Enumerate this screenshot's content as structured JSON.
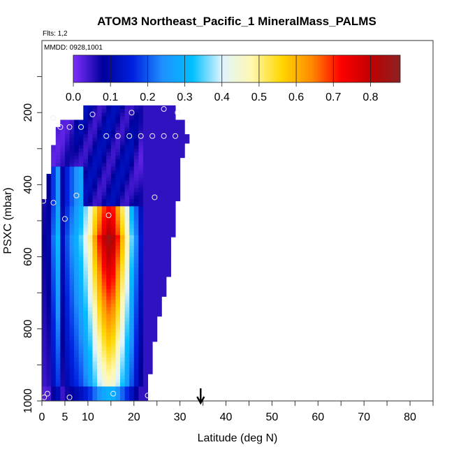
{
  "chart_data": {
    "type": "heatmap",
    "title": "ATOM3 Northeast_Pacific_1 MineralMass_PALMS",
    "flights_text": "Flts: 1,2",
    "dates_text": "MMDD: 0928,1001",
    "xlabel": "Latitude (deg N)",
    "ylabel": "PSXC (mbar)",
    "xlim": [
      0,
      85
    ],
    "ylim": [
      1000,
      0
    ],
    "x_ticks_labeled": [
      "0",
      "5",
      "10",
      "20",
      "30",
      "40",
      "50",
      "60",
      "70",
      "80"
    ],
    "y_ticks_labeled": [
      "200",
      "400",
      "600",
      "800",
      "1000"
    ],
    "arrow_latitude": 34.5,
    "colorbar": {
      "min": 0.0,
      "max": 0.88,
      "tick_labels": [
        "0.0",
        "0.1",
        "0.2",
        "0.3",
        "0.4",
        "0.5",
        "0.6",
        "0.7",
        "0.8"
      ],
      "colors": [
        "#7f2fff",
        "#00009a",
        "#0020e0",
        "#1e90ff",
        "#00bfff",
        "#e0f4ff",
        "#fff8b0",
        "#ffd700",
        "#ff8c00",
        "#ff0000",
        "#c00000",
        "#8b2222"
      ]
    },
    "columns": [
      {
        "lat": 0.0,
        "lat_end": 1.0,
        "p_top": 440,
        "p_bottom": 1000,
        "core": 0.08,
        "edge": 0.06
      },
      {
        "lat": 1.0,
        "lat_end": 2.0,
        "p_top": 370,
        "p_bottom": 1000,
        "core": 0.1,
        "edge": 0.05
      },
      {
        "lat": 2.0,
        "lat_end": 3.0,
        "p_top": 290,
        "p_bottom": 1000,
        "core": 0.22,
        "edge": 0.05
      },
      {
        "lat": 3.0,
        "lat_end": 4.0,
        "p_top": 240,
        "p_bottom": 1000,
        "core": 0.32,
        "edge": 0.05
      },
      {
        "lat": 4.0,
        "lat_end": 5.0,
        "p_top": 220,
        "p_bottom": 1000,
        "core": 0.12,
        "edge": 0.05
      },
      {
        "lat": 5.0,
        "lat_end": 6.0,
        "p_top": 220,
        "p_bottom": 1000,
        "core": 0.2,
        "edge": 0.06
      },
      {
        "lat": 6.0,
        "lat_end": 7.0,
        "p_top": 220,
        "p_bottom": 1000,
        "core": 0.25,
        "edge": 0.06
      },
      {
        "lat": 7.0,
        "lat_end": 8.0,
        "p_top": 220,
        "p_bottom": 1000,
        "core": 0.3,
        "edge": 0.08
      },
      {
        "lat": 8.0,
        "lat_end": 9.0,
        "p_top": 220,
        "p_bottom": 1000,
        "core": 0.35,
        "edge": 0.1
      },
      {
        "lat": 9.0,
        "lat_end": 10.0,
        "p_top": 180,
        "p_bottom": 1000,
        "core": 0.42,
        "edge": 0.1
      },
      {
        "lat": 10.0,
        "lat_end": 11.0,
        "p_top": 180,
        "p_bottom": 1000,
        "core": 0.5,
        "edge": 0.1
      },
      {
        "lat": 11.0,
        "lat_end": 12.0,
        "p_top": 180,
        "p_bottom": 1000,
        "core": 0.62,
        "edge": 0.1
      },
      {
        "lat": 12.0,
        "lat_end": 13.0,
        "p_top": 180,
        "p_bottom": 1000,
        "core": 0.72,
        "edge": 0.1
      },
      {
        "lat": 13.0,
        "lat_end": 14.0,
        "p_top": 180,
        "p_bottom": 1000,
        "core": 0.8,
        "edge": 0.1
      },
      {
        "lat": 14.0,
        "lat_end": 15.0,
        "p_top": 180,
        "p_bottom": 1000,
        "core": 0.85,
        "edge": 0.1
      },
      {
        "lat": 15.0,
        "lat_end": 16.0,
        "p_top": 180,
        "p_bottom": 1000,
        "core": 0.82,
        "edge": 0.1
      },
      {
        "lat": 16.0,
        "lat_end": 17.0,
        "p_top": 180,
        "p_bottom": 1000,
        "core": 0.72,
        "edge": 0.1
      },
      {
        "lat": 17.0,
        "lat_end": 18.0,
        "p_top": 180,
        "p_bottom": 1000,
        "core": 0.6,
        "edge": 0.1
      },
      {
        "lat": 18.0,
        "lat_end": 19.0,
        "p_top": 180,
        "p_bottom": 1000,
        "core": 0.48,
        "edge": 0.1
      },
      {
        "lat": 19.0,
        "lat_end": 20.0,
        "p_top": 180,
        "p_bottom": 1000,
        "core": 0.36,
        "edge": 0.1
      },
      {
        "lat": 20.0,
        "lat_end": 21.0,
        "p_top": 180,
        "p_bottom": 1000,
        "core": 0.24,
        "edge": 0.08
      },
      {
        "lat": 21.0,
        "lat_end": 22.0,
        "p_top": 180,
        "p_bottom": 1000,
        "core": 0.14,
        "edge": 0.06
      },
      {
        "lat": 22.0,
        "lat_end": 23.0,
        "p_top": 180,
        "p_bottom": 1000,
        "core": 0.08,
        "edge": 0.05
      },
      {
        "lat": 23.0,
        "lat_end": 24.0,
        "p_top": 180,
        "p_bottom": 925,
        "core": 0.05,
        "edge": 0.05
      },
      {
        "lat": 24.0,
        "lat_end": 25.0,
        "p_top": 180,
        "p_bottom": 835,
        "core": 0.05,
        "edge": 0.05
      },
      {
        "lat": 25.0,
        "lat_end": 26.0,
        "p_top": 180,
        "p_bottom": 765,
        "core": 0.05,
        "edge": 0.05
      },
      {
        "lat": 26.0,
        "lat_end": 27.0,
        "p_top": 180,
        "p_bottom": 710,
        "core": 0.05,
        "edge": 0.05
      },
      {
        "lat": 27.0,
        "lat_end": 28.0,
        "p_top": 180,
        "p_bottom": 655,
        "core": 0.05,
        "edge": 0.05
      },
      {
        "lat": 28.0,
        "lat_end": 29.0,
        "p_top": 180,
        "p_bottom": 545,
        "core": 0.05,
        "edge": 0.05
      },
      {
        "lat": 29.0,
        "lat_end": 30.0,
        "p_top": 220,
        "p_bottom": 445,
        "core": 0.05,
        "edge": 0.05
      },
      {
        "lat": 30.0,
        "lat_end": 31.0,
        "p_top": 220,
        "p_bottom": 325,
        "core": 0.05,
        "edge": 0.05
      },
      {
        "lat": 31.0,
        "lat_end": 32.0,
        "p_top": 260,
        "p_bottom": 285,
        "core": 0.05,
        "edge": 0.05
      }
    ],
    "points": [
      {
        "lat": 0.3,
        "p": 445
      },
      {
        "lat": 1.2,
        "p": 980
      },
      {
        "lat": 0.5,
        "p": 990
      },
      {
        "lat": 2.5,
        "p": 215
      },
      {
        "lat": 2.5,
        "p": 450
      },
      {
        "lat": 4.0,
        "p": 240
      },
      {
        "lat": 6.0,
        "p": 240
      },
      {
        "lat": 8.5,
        "p": 240
      },
      {
        "lat": 5.0,
        "p": 495
      },
      {
        "lat": 7.5,
        "p": 430
      },
      {
        "lat": 6.0,
        "p": 990
      },
      {
        "lat": 11.0,
        "p": 205
      },
      {
        "lat": 14.0,
        "p": 265
      },
      {
        "lat": 16.5,
        "p": 265
      },
      {
        "lat": 19.0,
        "p": 265
      },
      {
        "lat": 21.5,
        "p": 265
      },
      {
        "lat": 24.0,
        "p": 265
      },
      {
        "lat": 26.5,
        "p": 265
      },
      {
        "lat": 29.0,
        "p": 265
      },
      {
        "lat": 14.5,
        "p": 485
      },
      {
        "lat": 15.5,
        "p": 980
      },
      {
        "lat": 19.5,
        "p": 200
      },
      {
        "lat": 26.5,
        "p": 190
      },
      {
        "lat": 29.5,
        "p": 200
      },
      {
        "lat": 24.5,
        "p": 435
      },
      {
        "lat": 23.0,
        "p": 985
      }
    ]
  }
}
